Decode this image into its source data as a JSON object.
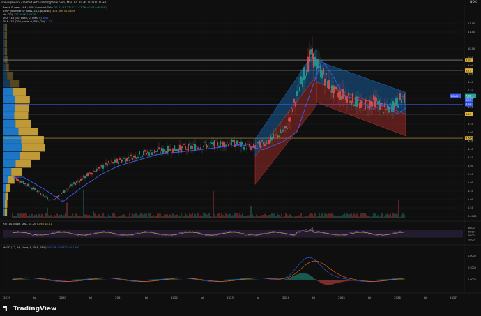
{
  "header": {
    "text": "stevelphenni created with TradingView.com, Mar 27, 2026 11:00 UTC+1",
    "currency": "NOK"
  },
  "legend": {
    "symbol_line": "Reach Subsea ASA · 1W · Euronext Oslo",
    "symbol_values": "O7.63 H7.77 L7.17 C7.18 −0.47 (−6.15%)",
    "vrvp_label": "VRVP (Number Of Rows, 24, Up/Down)",
    "vrvp_values": "30.116M 50.334M",
    "vol_label": "Vol (20)",
    "vol_value": "757.884K 2.453M",
    "sma50_label": "SMA · 1D (50, close, 0, SMA, 5)",
    "sma50_value": "6.81",
    "sma200_label": "SMA · 1D (200, close, 0, SMA, 20)",
    "sma200_value": "7.77"
  },
  "rsi": {
    "label": "RSI (14, close, SMA, 14, 2)",
    "values": "51.66 48.61",
    "ticks": [
      "80.00",
      "60.00",
      "40.00",
      "20.00"
    ]
  },
  "macd": {
    "label": "MACD (12, 26, close, 9, EMA, EMA)",
    "values": "0.0578 −0.0622 −0.1200",
    "ticks": [
      "1.0000",
      "0.5000",
      "0.0000"
    ]
  },
  "price_axis": [
    "11.50",
    "11.00",
    "10.00",
    "9.50",
    "9.00",
    "8.50",
    "8.00",
    "7.50",
    "7.00",
    "6.50",
    "6.00",
    "5.50",
    "5.00",
    "4.50",
    "4.00",
    "3.50",
    "3.00",
    "2.50",
    "2.00",
    "1.50",
    "1.00",
    "0.50",
    "0.0000"
  ],
  "price_labels": {
    "top_red": "9.33",
    "red2": "8.71",
    "current_symbol": "REACH",
    "current": "7.18",
    "current_time": "01:11:00",
    "blue": "6.93",
    "blue2": "6.68",
    "red3": "6.09",
    "yellow": "4.665"
  },
  "time_axis": [
    "2019",
    "Jul",
    "2020",
    "Jul",
    "2021",
    "Jul",
    "2022",
    "Jul",
    "2023",
    "Jul",
    "2024",
    "Jul",
    "2025",
    "Jul",
    "2026",
    "Jul",
    "2027"
  ],
  "branding": {
    "name": "TradingView"
  },
  "colors": {
    "up": "#26a69a",
    "down": "#ef5350",
    "sma": "#3f5ff5",
    "poc": "#e0b340",
    "vp_up": "#1e88e5"
  }
}
